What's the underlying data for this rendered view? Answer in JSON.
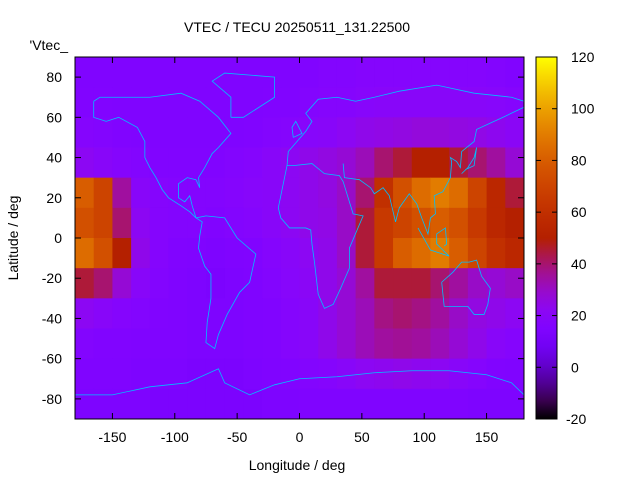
{
  "chart_data": {
    "type": "heatmap",
    "title": "VTEC / TECU 20250511_131.22500",
    "xlabel": "Longitude / deg",
    "ylabel": "Latitude / deg",
    "legend_entry": "'Vtec_",
    "xlim": [
      -180,
      180
    ],
    "ylim": [
      -90,
      90
    ],
    "xticks": [
      -150,
      -100,
      -50,
      0,
      50,
      100,
      150
    ],
    "yticks": [
      -80,
      -60,
      -40,
      -20,
      0,
      20,
      40,
      60,
      80
    ],
    "colorbar": {
      "range": [
        -20,
        120
      ],
      "ticks": [
        -20,
        0,
        20,
        40,
        60,
        80,
        100,
        120
      ],
      "palette": "black-blue-violet-red-orange-yellow"
    },
    "coastline_color": "#00c0ff",
    "grid_lon_centers": [
      -172.5,
      -157.5,
      -142.5,
      -127.5,
      -112.5,
      -97.5,
      -82.5,
      -67.5,
      -52.5,
      -37.5,
      -22.5,
      -7.5,
      7.5,
      22.5,
      37.5,
      52.5,
      67.5,
      82.5,
      97.5,
      112.5,
      127.5,
      142.5,
      157.5,
      172.5
    ],
    "grid_lat_centers": [
      82.5,
      67.5,
      52.5,
      37.5,
      22.5,
      7.5,
      -7.5,
      -22.5,
      -37.5,
      -52.5,
      -67.5,
      -82.5
    ],
    "values": [
      [
        15,
        15,
        15,
        15,
        15,
        15,
        15,
        15,
        15,
        15,
        15,
        15,
        16,
        17,
        17,
        18,
        18,
        18,
        18,
        18,
        18,
        18,
        17,
        16
      ],
      [
        16,
        16,
        15,
        15,
        15,
        15,
        15,
        15,
        15,
        15,
        16,
        16,
        17,
        18,
        18,
        19,
        20,
        20,
        20,
        20,
        20,
        20,
        19,
        18
      ],
      [
        18,
        17,
        16,
        15,
        15,
        15,
        15,
        15,
        15,
        16,
        17,
        18,
        19,
        20,
        22,
        24,
        25,
        26,
        27,
        27,
        26,
        25,
        23,
        21
      ],
      [
        22,
        20,
        18,
        17,
        16,
        16,
        16,
        16,
        17,
        18,
        20,
        22,
        24,
        26,
        28,
        32,
        40,
        45,
        50,
        50,
        45,
        40,
        35,
        28
      ],
      [
        80,
        70,
        35,
        20,
        18,
        17,
        17,
        17,
        18,
        19,
        20,
        22,
        24,
        26,
        30,
        40,
        60,
        75,
        85,
        90,
        85,
        70,
        55,
        45
      ],
      [
        75,
        70,
        40,
        22,
        18,
        17,
        17,
        16,
        17,
        18,
        20,
        22,
        24,
        25,
        30,
        45,
        65,
        70,
        75,
        80,
        75,
        65,
        55,
        50
      ],
      [
        85,
        75,
        50,
        24,
        18,
        16,
        15,
        14,
        15,
        16,
        18,
        20,
        22,
        24,
        30,
        45,
        65,
        80,
        85,
        90,
        80,
        70,
        60,
        55
      ],
      [
        45,
        40,
        28,
        20,
        17,
        15,
        14,
        13,
        14,
        15,
        17,
        19,
        21,
        24,
        28,
        35,
        45,
        45,
        45,
        40,
        35,
        30,
        28,
        30
      ],
      [
        22,
        20,
        18,
        17,
        16,
        15,
        14,
        14,
        14,
        15,
        16,
        18,
        20,
        24,
        28,
        32,
        38,
        40,
        38,
        35,
        30,
        26,
        24,
        22
      ],
      [
        17,
        16,
        16,
        15,
        15,
        15,
        14,
        14,
        14,
        15,
        16,
        18,
        20,
        24,
        28,
        32,
        35,
        36,
        35,
        32,
        28,
        24,
        20,
        18
      ],
      [
        15,
        15,
        15,
        14,
        14,
        14,
        13,
        13,
        13,
        14,
        15,
        16,
        17,
        18,
        20,
        22,
        23,
        24,
        23,
        22,
        20,
        18,
        16,
        15
      ],
      [
        14,
        14,
        14,
        14,
        13,
        13,
        13,
        13,
        13,
        13,
        14,
        14,
        15,
        15,
        15,
        15,
        15,
        15,
        15,
        15,
        15,
        14,
        14,
        14
      ]
    ]
  }
}
